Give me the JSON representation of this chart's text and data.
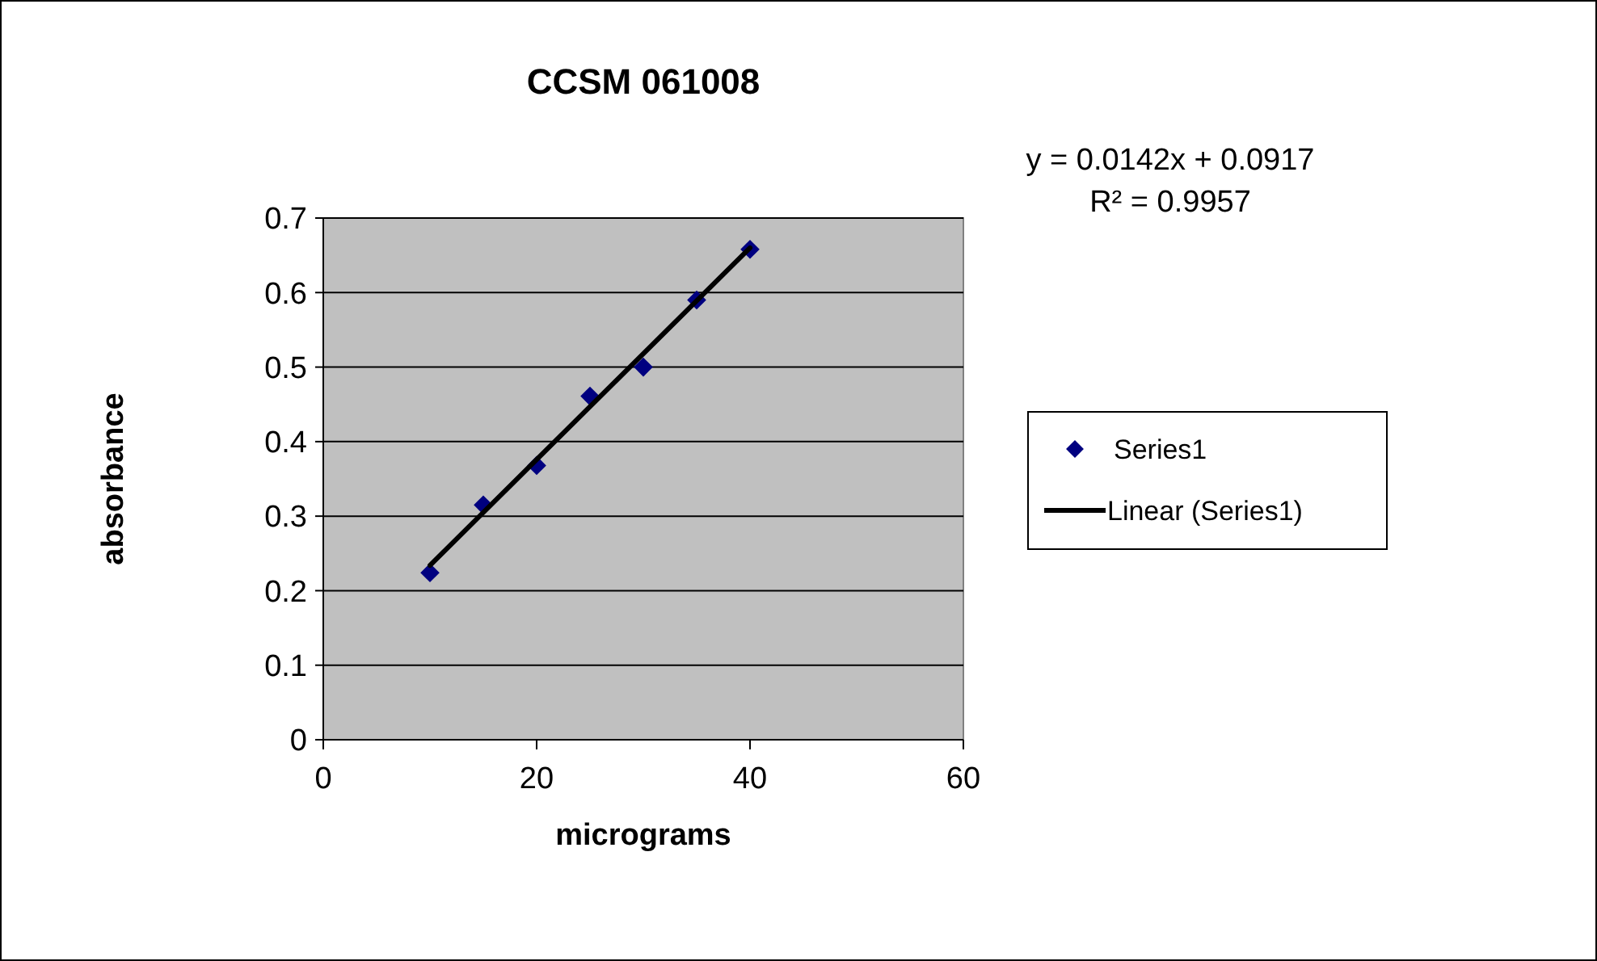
{
  "chart_data": {
    "type": "scatter",
    "title": "CCSM 061008",
    "xlabel": "micrograms",
    "ylabel": "absorbance",
    "x": [
      10,
      15,
      20,
      25,
      30,
      35,
      40
    ],
    "series": [
      {
        "name": "Series1",
        "color": "#000080",
        "marker": "diamond",
        "values": [
          0.224,
          0.315,
          0.368,
          0.461,
          0.5,
          0.59,
          0.658
        ]
      },
      {
        "name": "Linear (Series1)",
        "color": "#000000",
        "type": "line",
        "marker": "none",
        "line_style": "solid",
        "x": [
          10,
          40
        ],
        "values": [
          0.234,
          0.66
        ]
      }
    ],
    "annotations": [
      "y = 0.0142x + 0.0917",
      "R² = 0.9957"
    ],
    "xlim": [
      0,
      60
    ],
    "xticks": [
      0,
      20,
      40,
      60
    ],
    "ylim": [
      0,
      0.7
    ],
    "yticks": [
      0,
      0.1,
      0.2,
      0.3,
      0.4,
      0.5,
      0.6,
      0.7
    ],
    "grid": "y",
    "legend": "right"
  }
}
